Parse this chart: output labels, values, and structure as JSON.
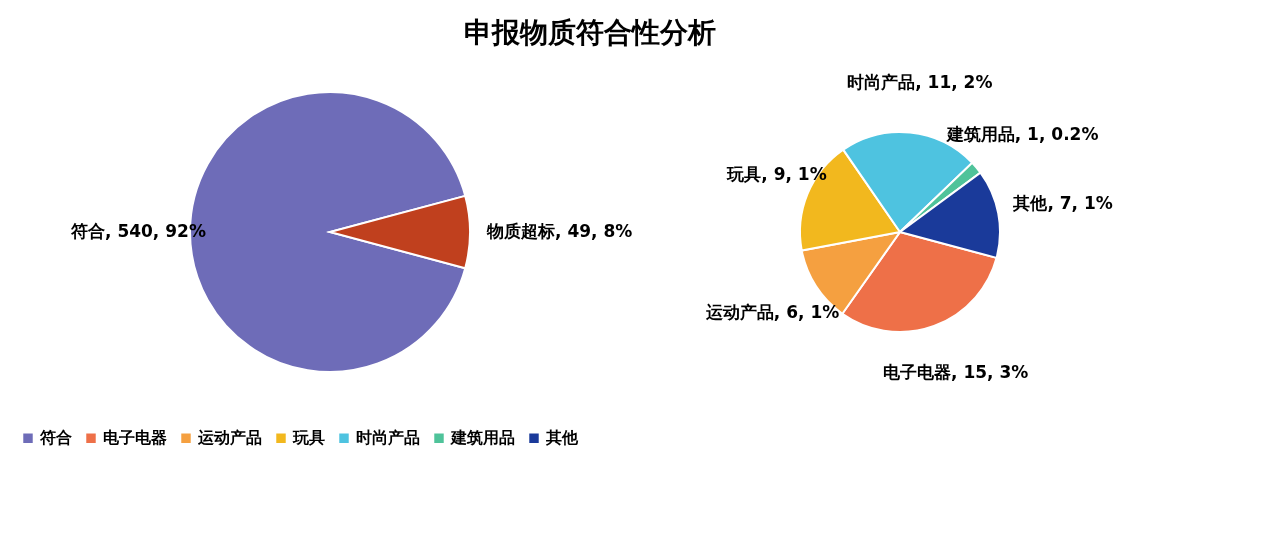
{
  "chart_data": [
    {
      "type": "pie",
      "title": "申报物质符合性分析",
      "categories": [
        "符合",
        "物质超标"
      ],
      "values": [
        540,
        49
      ],
      "colors": [
        "#6e6cb8",
        "#c0401e"
      ],
      "value_labels": [
        ", 540, 92%",
        ", 49, 8%"
      ],
      "legend": "bottom"
    },
    {
      "type": "pie",
      "categories": [
        "电子电器",
        "运动产品",
        "玩具",
        "时尚产品",
        "建筑用品",
        "其他"
      ],
      "values": [
        15,
        6,
        9,
        11,
        1,
        7
      ],
      "colors": [
        "#ee7048",
        "#f5a040",
        "#f2b81e",
        "#4ec3e0",
        "#4fc39a",
        "#1a3a9a"
      ],
      "value_labels": [
        ", 15, 3%",
        ", 6, 1%",
        ", 9, 1%",
        ", 11, 2%",
        ", 1, 0.2%",
        ", 7, 1%"
      ],
      "legend": "bottom"
    }
  ]
}
